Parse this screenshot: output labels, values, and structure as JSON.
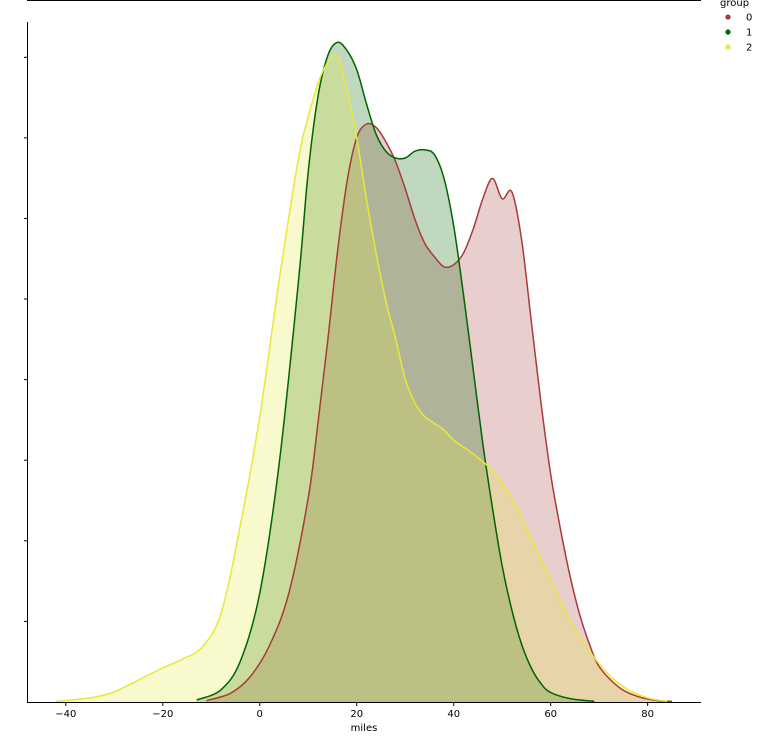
{
  "chart_data": {
    "type": "area",
    "xlabel": "miles",
    "ylabel": "",
    "xlim": [
      -48,
      91
    ],
    "ylim": [
      0,
      1
    ],
    "x_ticks": [
      -40,
      -20,
      0,
      20,
      40,
      60,
      80
    ],
    "x_tick_labels": [
      "−40",
      "−20",
      "0",
      "20",
      "40",
      "60",
      "80"
    ],
    "y_ticks": [
      0.1185,
      0.2371,
      0.3556,
      0.4741,
      0.5926,
      0.7111,
      0.8296,
      0.9481
    ],
    "legend": {
      "title": "group",
      "placement": "top-right"
    },
    "series": [
      {
        "name": "0",
        "color": "#a83a3a",
        "x": [
          -11,
          -6,
          -2,
          2,
          6,
          10,
          12,
          14,
          16,
          18,
          20,
          22,
          24,
          26,
          28,
          30,
          32,
          34,
          36,
          38,
          40,
          42,
          44,
          46,
          48,
          50,
          52,
          54,
          56,
          58,
          60,
          62,
          64,
          66,
          68,
          70,
          74,
          78,
          82,
          85
        ],
        "y": [
          0.002,
          0.013,
          0.037,
          0.083,
          0.16,
          0.3,
          0.41,
          0.53,
          0.66,
          0.765,
          0.83,
          0.85,
          0.845,
          0.824,
          0.795,
          0.755,
          0.71,
          0.675,
          0.655,
          0.64,
          0.643,
          0.66,
          0.695,
          0.74,
          0.77,
          0.74,
          0.75,
          0.68,
          0.56,
          0.44,
          0.335,
          0.255,
          0.185,
          0.128,
          0.085,
          0.052,
          0.022,
          0.008,
          0.002,
          0.001
        ]
      },
      {
        "name": "1",
        "color": "#006400",
        "x": [
          -13,
          -8,
          -4,
          0,
          4,
          8,
          10,
          12,
          14,
          16,
          18,
          20,
          22,
          24,
          26,
          28,
          30,
          32,
          34,
          36,
          38,
          40,
          42,
          44,
          46,
          48,
          50,
          52,
          54,
          56,
          58,
          60,
          64,
          69
        ],
        "y": [
          0.003,
          0.018,
          0.06,
          0.16,
          0.35,
          0.62,
          0.78,
          0.89,
          0.95,
          0.97,
          0.958,
          0.93,
          0.88,
          0.835,
          0.81,
          0.8,
          0.8,
          0.81,
          0.812,
          0.805,
          0.77,
          0.7,
          0.6,
          0.49,
          0.38,
          0.285,
          0.2,
          0.135,
          0.085,
          0.05,
          0.027,
          0.014,
          0.005,
          0.001
        ]
      },
      {
        "name": "2",
        "color": "#e8e83a",
        "x": [
          -42,
          -35,
          -30,
          -24,
          -20,
          -16,
          -12,
          -8,
          -4,
          0,
          4,
          8,
          10,
          12,
          14,
          16,
          18,
          20,
          22,
          24,
          26,
          28,
          30,
          32,
          34,
          36,
          38,
          40,
          44,
          48,
          52,
          56,
          60,
          64,
          68,
          72,
          76,
          80,
          84
        ],
        "y": [
          0.001,
          0.006,
          0.015,
          0.036,
          0.05,
          0.063,
          0.08,
          0.13,
          0.26,
          0.42,
          0.62,
          0.8,
          0.86,
          0.91,
          0.94,
          0.95,
          0.9,
          0.83,
          0.74,
          0.66,
          0.59,
          0.535,
          0.475,
          0.44,
          0.42,
          0.41,
          0.4,
          0.385,
          0.365,
          0.34,
          0.3,
          0.24,
          0.18,
          0.12,
          0.075,
          0.04,
          0.018,
          0.006,
          0.001
        ]
      }
    ]
  }
}
